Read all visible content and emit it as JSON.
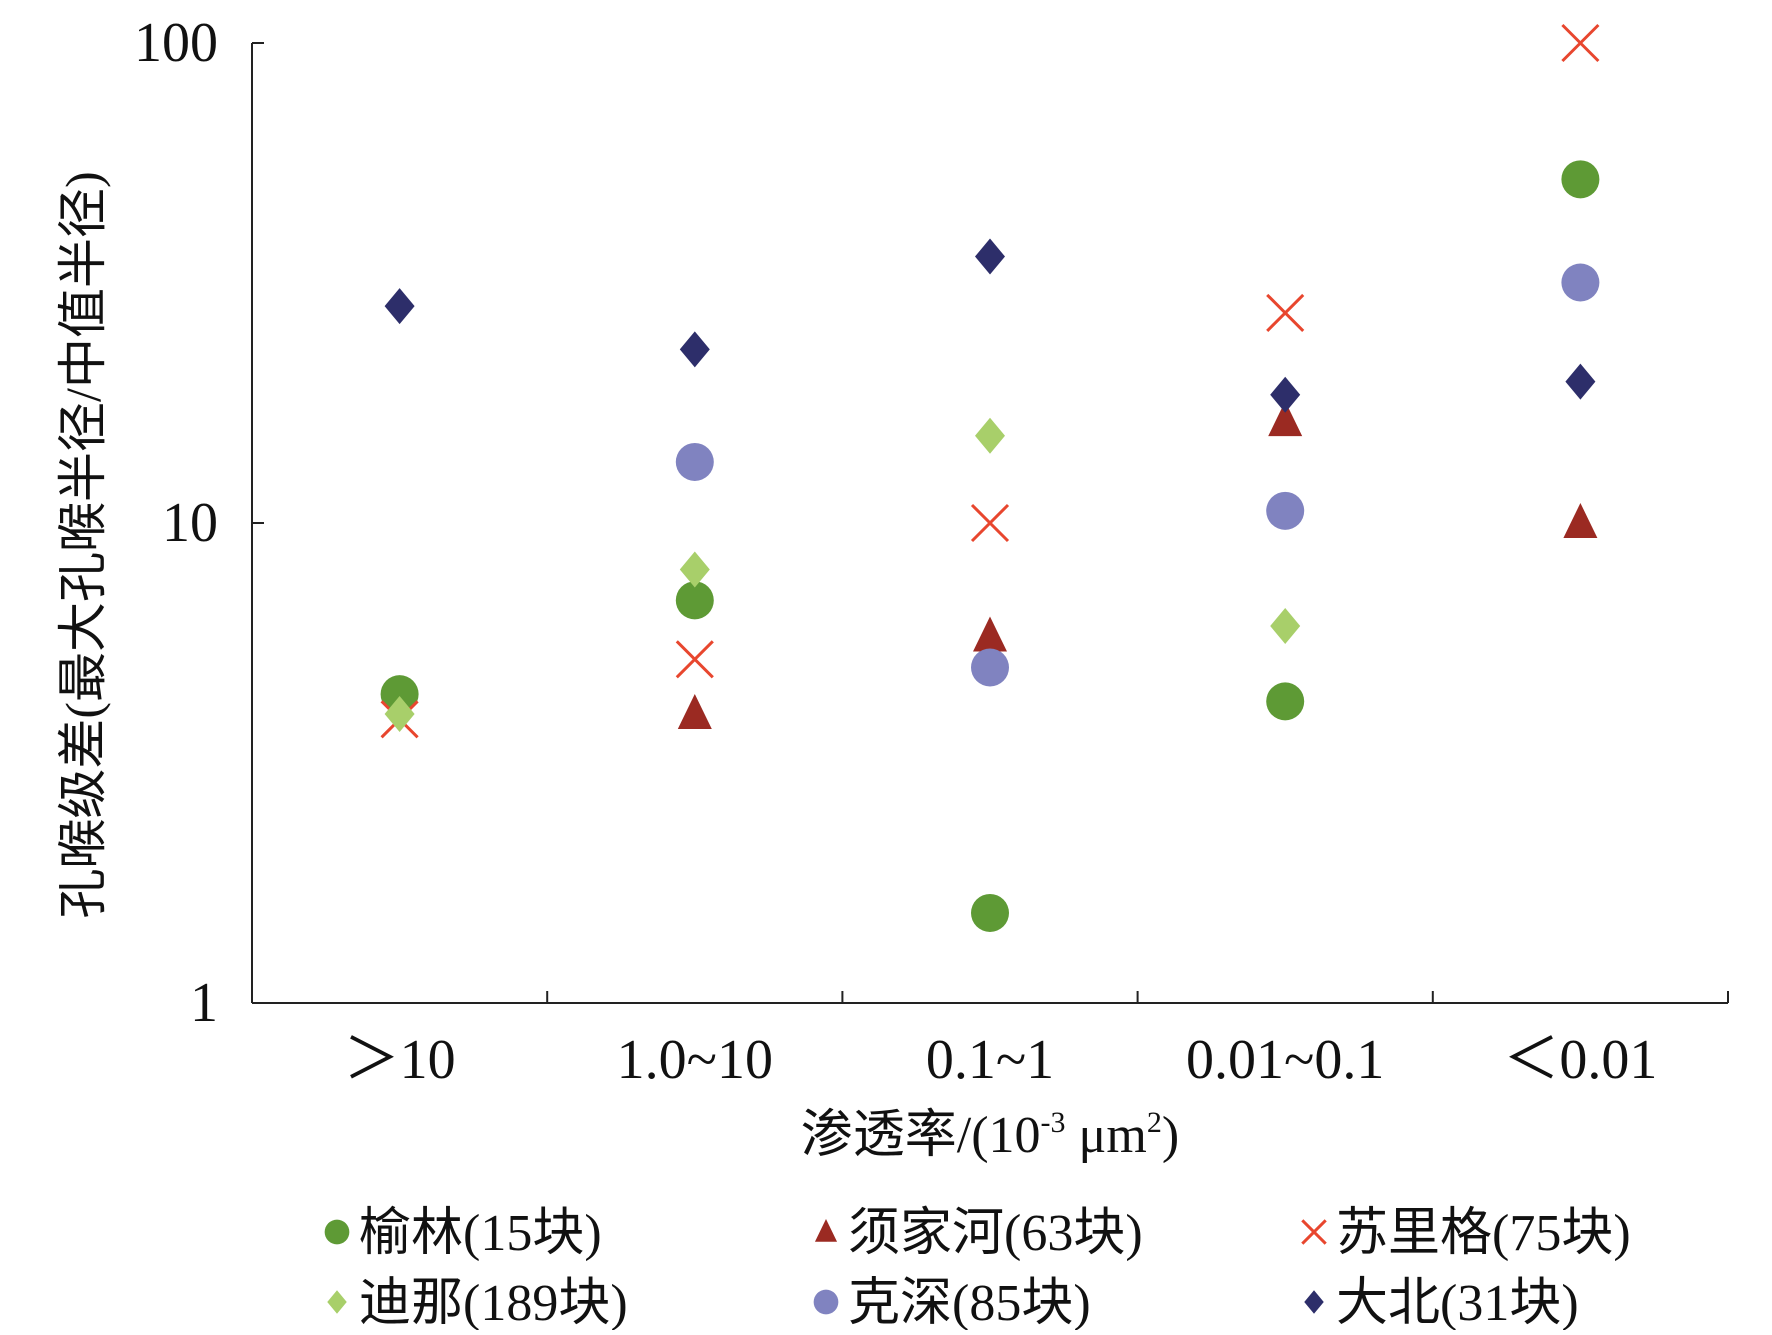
{
  "chart_data": {
    "type": "scatter",
    "title": "",
    "xlabel": "渗透率/(10-3 μm2)",
    "xlabel_parts": {
      "main": "渗透率/(10",
      "sup1": "-3",
      "unit": " μm",
      "sup2": "2",
      "close": ")"
    },
    "ylabel": "孔喉级差(最大孔喉半径/中值半径)",
    "yscale": "log",
    "ylim": [
      1,
      100
    ],
    "yticks": [
      {
        "value": 1,
        "label": "1"
      },
      {
        "value": 10,
        "label": "10"
      },
      {
        "value": 100,
        "label": "100"
      }
    ],
    "categories": [
      ">10",
      "1.0~10",
      "0.1~1",
      "0.01~0.1",
      "<0.01"
    ],
    "category_labels": [
      "＞10",
      "1.0~10",
      "0.1~1",
      "0.01~0.1",
      "＜0.01"
    ],
    "legend_position": "bottom",
    "series": [
      {
        "name": "榆林(15块)",
        "marker": "circle",
        "color": "#5e9a35",
        "values": [
          4.4,
          6.9,
          1.54,
          4.25,
          52
        ]
      },
      {
        "name": "须家河(63块)",
        "marker": "triangle",
        "color": "#9b2a22",
        "values": [
          null,
          4.0,
          5.8,
          16.3,
          10
        ]
      },
      {
        "name": "苏里格(75块)",
        "marker": "x",
        "color": "#e8462e",
        "values": [
          3.9,
          5.2,
          10,
          27.4,
          100
        ]
      },
      {
        "name": "迪那(189块)",
        "marker": "diamond",
        "color": "#a8cf6a",
        "values": [
          4.0,
          8.0,
          15.2,
          6.1,
          null
        ]
      },
      {
        "name": "克深(85块)",
        "marker": "circle",
        "color": "#8083c0",
        "values": [
          null,
          13.4,
          5.0,
          10.6,
          31.7
        ]
      },
      {
        "name": "大北(31块)",
        "marker": "diamond",
        "color": "#2d2e6a",
        "values": [
          28.3,
          23.0,
          35.9,
          18.5,
          19.7
        ]
      }
    ]
  }
}
